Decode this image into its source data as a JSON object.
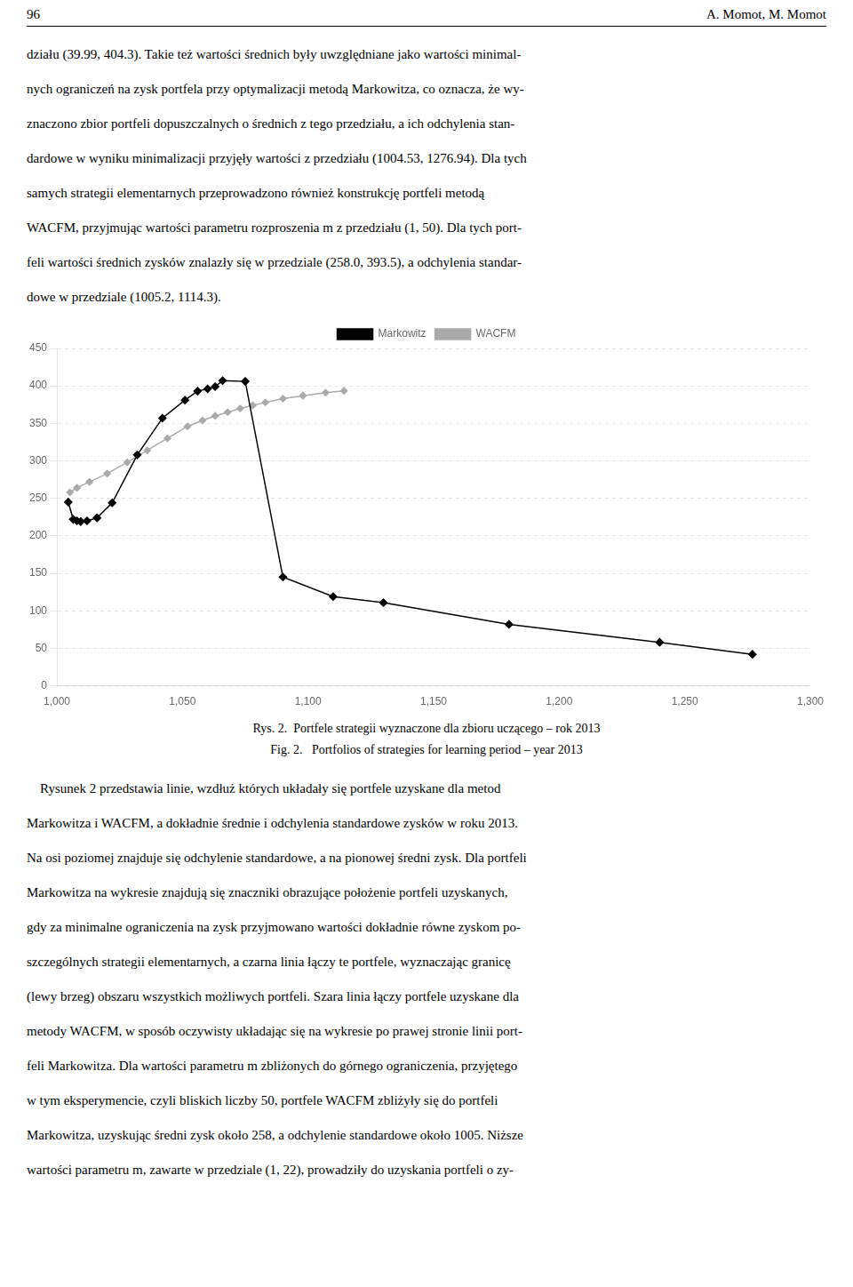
{
  "page_header": [
    "96",
    "A. Momot, M. Momot"
  ],
  "text_before": [
    "działu (39.99, 404.3). Takie też wartości średnich były uwzględniane jako wartości minimal-",
    "nych ograniczeń na zysk portfela przy optymalizacji metodą Markowitza, co oznacza, że wy-",
    "znaczono zbior portfeli dopuszczalnych o średnich z tego przedziału, a ich odchylenia stan-",
    "dardowe w wyniku minimalizacji przyjęły wartości z przedziału (1004.53, 1276.94). Dla tych",
    "samych strategii elementarnych przeprowadzono również konstrukcję portfeli metodą",
    "WACFM, przyjmując wartości parametru rozproszenia m z przedziału (1, 50). Dla tych port-",
    "feli wartości średnich zysków znalazły się w przedziale (258.0, 393.5), a odchylenia standar-",
    "dowe w przedziale (1005.2, 1114.3)."
  ],
  "chart_data": {
    "type": "line",
    "series": [
      {
        "name": "Markowitz",
        "color": "#000000",
        "marker": "diamond",
        "line_style": "solid",
        "x": [
          1004.53,
          1006.5,
          1008.0,
          1009.5,
          1012.0,
          1016.0,
          1022.0,
          1032.0,
          1042.0,
          1051.0,
          1056.0,
          1060.0,
          1063.0,
          1066.0,
          1075.0,
          1090.0,
          1110.0,
          1130.0,
          1180.0,
          1240.0,
          1276.94
        ],
        "values": [
          245,
          222,
          220,
          219,
          220,
          224,
          244,
          308,
          357,
          381,
          393,
          396,
          399,
          407,
          406,
          145,
          119,
          111,
          82,
          58,
          42
        ]
      },
      {
        "name": "WACFM",
        "color": "#aaaaaa",
        "marker": "diamond",
        "line_style": "solid",
        "x": [
          1005.2,
          1008.0,
          1013.0,
          1020.0,
          1028.0,
          1036.0,
          1044.0,
          1052.0,
          1058.0,
          1063.0,
          1068.0,
          1073.0,
          1078.0,
          1083.0,
          1090.0,
          1098.0,
          1107.0,
          1114.3
        ],
        "values": [
          258,
          264,
          272,
          283,
          298,
          314,
          330,
          346,
          354,
          360,
          365,
          370,
          374,
          378,
          383,
          387,
          391,
          393.5
        ]
      }
    ],
    "xlim": [
      1000,
      1300
    ],
    "ylim": [
      0,
      450
    ],
    "xticks": [
      1000,
      1050,
      1100,
      1150,
      1200,
      1250,
      1300
    ],
    "yticks": [
      0,
      50,
      100,
      150,
      200,
      250,
      300,
      350,
      400,
      450
    ],
    "grid": "y",
    "legend": "top"
  },
  "caption": [
    "Rys. 2.  Portfele strategii wyznaczone dla zbioru uczącego – rok 2013",
    "Fig. 2.   Portfolios of strategies for learning period – year 2013"
  ],
  "text_after": [
    "    Rysunek 2 przedstawia linie, wzdłuż których układały się portfele uzyskane dla metod",
    "Markowitza i WACFM, a dokładnie średnie i odchylenia standardowe zysków w roku 2013.",
    "Na osi poziomej znajduje się odchylenie standardowe, a na pionowej średni zysk. Dla portfeli",
    "Markowitza na wykresie znajdują się znaczniki obrazujące położenie portfeli uzyskanych,",
    "gdy za minimalne ograniczenia na zysk przyjmowano wartości dokładnie równe zyskom po-",
    "szczególnych strategii elementarnych, a czarna linia łączy te portfele, wyznaczając granicę",
    "(lewy brzeg) obszaru wszystkich możliwych portfeli. Szara linia łączy portfele uzyskane dla",
    "metody WACFM, w sposób oczywisty układając się na wykresie po prawej stronie linii port-",
    "feli Markowitza. Dla wartości parametru m zbliżonych do górnego ograniczenia, przyjętego",
    "w tym eksperymencie, czyli bliskich liczby 50, portfele WACFM zbliżyły się do portfeli",
    "Markowitza, uzyskując średni zysk około 258, a odchylenie standardowe około 1005. Niższe",
    "wartości parametru m, zawarte w przedziale (1, 22), prowadziły do uzyskania portfeli o zy-"
  ]
}
